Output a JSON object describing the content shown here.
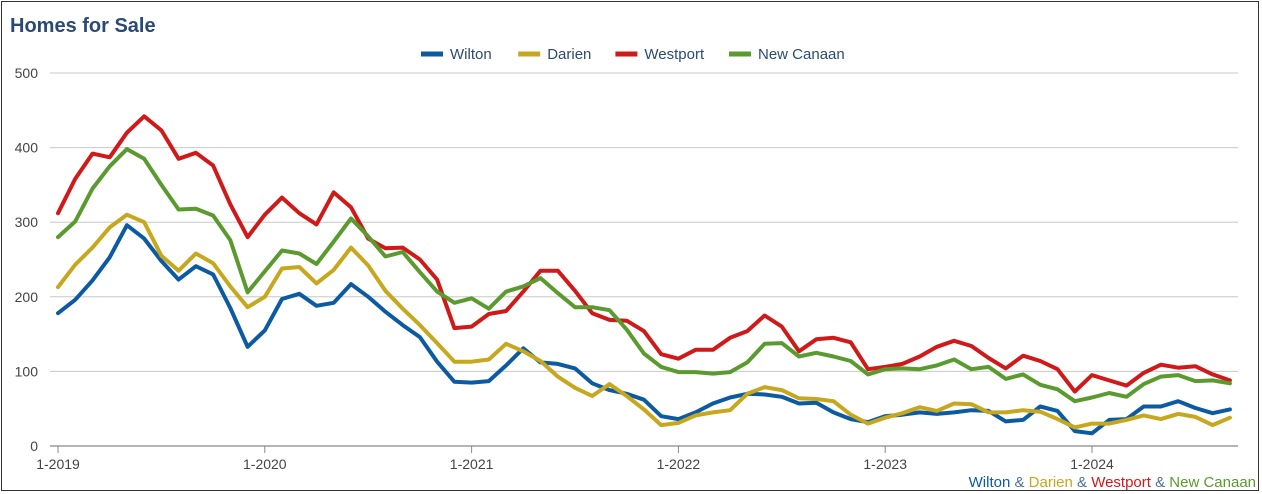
{
  "chart_data": {
    "type": "line",
    "title": "Homes for Sale",
    "ylim": [
      0,
      500
    ],
    "yticks": [
      0,
      100,
      200,
      300,
      400,
      500
    ],
    "xlim": [
      2019.0,
      2024.83
    ],
    "xticks": [
      {
        "value": 2019,
        "label": "1-2019"
      },
      {
        "value": 2020,
        "label": "1-2020"
      },
      {
        "value": 2021,
        "label": "1-2021"
      },
      {
        "value": 2022,
        "label": "1-2022"
      },
      {
        "value": 2023,
        "label": "1-2023"
      },
      {
        "value": 2024,
        "label": "1-2024"
      }
    ],
    "grid": true,
    "legend_position": "top",
    "x": [
      2019.0,
      2019.083,
      2019.167,
      2019.25,
      2019.333,
      2019.417,
      2019.5,
      2019.583,
      2019.667,
      2019.75,
      2019.833,
      2019.917,
      2020.0,
      2020.083,
      2020.167,
      2020.25,
      2020.333,
      2020.417,
      2020.5,
      2020.583,
      2020.667,
      2020.75,
      2020.833,
      2020.917,
      2021.0,
      2021.083,
      2021.167,
      2021.25,
      2021.333,
      2021.417,
      2021.5,
      2021.583,
      2021.667,
      2021.75,
      2021.833,
      2021.917,
      2022.0,
      2022.083,
      2022.167,
      2022.25,
      2022.333,
      2022.417,
      2022.5,
      2022.583,
      2022.667,
      2022.75,
      2022.833,
      2022.917,
      2023.0,
      2023.083,
      2023.167,
      2023.25,
      2023.333,
      2023.417,
      2023.5,
      2023.583,
      2023.667,
      2023.75,
      2023.833,
      2023.917,
      2024.0,
      2024.083,
      2024.167,
      2024.25,
      2024.333,
      2024.417,
      2024.5,
      2024.583,
      2024.667
    ],
    "series": [
      {
        "name": "Wilton",
        "color": "#0b5aa2",
        "values": [
          178,
          196,
          222,
          253,
          296,
          278,
          248,
          223,
          241,
          230,
          185,
          133,
          155,
          197,
          204,
          188,
          192,
          217,
          200,
          180,
          162,
          146,
          113,
          86,
          85,
          87,
          108,
          131,
          112,
          110,
          104,
          84,
          75,
          70,
          62,
          40,
          36,
          45,
          57,
          65,
          70,
          69,
          66,
          57,
          58,
          45,
          36,
          32,
          40,
          42,
          45,
          43,
          45,
          48,
          47,
          33,
          35,
          53,
          47,
          20,
          17,
          35,
          36,
          53,
          53,
          60,
          51,
          44,
          49
        ]
      },
      {
        "name": "Darien",
        "color": "#c6a71d",
        "values": [
          213,
          243,
          266,
          293,
          310,
          300,
          255,
          235,
          258,
          245,
          214,
          186,
          200,
          238,
          240,
          218,
          236,
          266,
          242,
          208,
          184,
          162,
          138,
          113,
          113,
          116,
          137,
          127,
          114,
          93,
          78,
          67,
          83,
          67,
          49,
          28,
          31,
          41,
          45,
          48,
          70,
          79,
          75,
          64,
          63,
          60,
          42,
          30,
          38,
          44,
          52,
          47,
          57,
          56,
          45,
          45,
          48,
          46,
          36,
          25,
          30,
          30,
          35,
          41,
          36,
          43,
          39,
          28,
          38
        ]
      },
      {
        "name": "Westport",
        "color": "#d01919",
        "values": [
          312,
          358,
          392,
          387,
          420,
          442,
          423,
          385,
          393,
          376,
          324,
          280,
          310,
          333,
          312,
          297,
          340,
          320,
          278,
          265,
          266,
          250,
          223,
          158,
          160,
          177,
          181,
          207,
          235,
          235,
          208,
          178,
          169,
          168,
          154,
          123,
          117,
          129,
          129,
          145,
          154,
          175,
          160,
          127,
          143,
          145,
          139,
          103,
          106,
          110,
          120,
          133,
          141,
          134,
          118,
          104,
          121,
          114,
          103,
          73,
          95,
          88,
          81,
          98,
          109,
          105,
          107,
          96,
          88
        ]
      },
      {
        "name": "New Canaan",
        "color": "#5a9a2e",
        "values": [
          280,
          301,
          345,
          375,
          398,
          385,
          350,
          317,
          318,
          309,
          276,
          206,
          234,
          262,
          258,
          244,
          274,
          305,
          281,
          254,
          260,
          233,
          207,
          192,
          198,
          184,
          207,
          214,
          225,
          205,
          186,
          186,
          182,
          156,
          124,
          106,
          99,
          99,
          97,
          99,
          112,
          137,
          138,
          120,
          125,
          120,
          114,
          96,
          103,
          104,
          103,
          108,
          116,
          103,
          106,
          90,
          96,
          82,
          76,
          60,
          65,
          71,
          66,
          83,
          93,
          95,
          87,
          88,
          84
        ]
      }
    ]
  },
  "credit": {
    "parts": [
      {
        "text": "Wilton",
        "color": "#0b5aa2"
      },
      {
        "text": " & ",
        "color": "#4d6f99"
      },
      {
        "text": "Darien",
        "color": "#c6a71d"
      },
      {
        "text": " & ",
        "color": "#4d6f99"
      },
      {
        "text": "Westport",
        "color": "#d01919"
      },
      {
        "text": " & ",
        "color": "#4d6f99"
      },
      {
        "text": "New Canaan",
        "color": "#5a9a2e"
      }
    ]
  }
}
